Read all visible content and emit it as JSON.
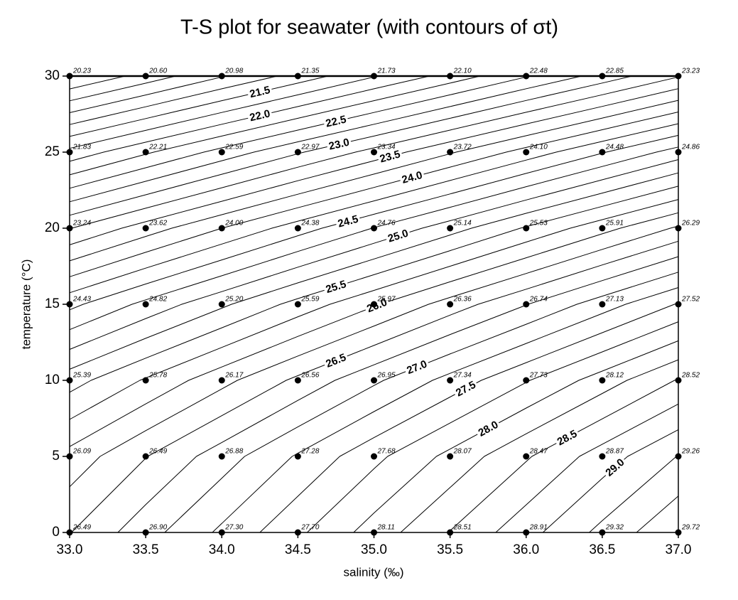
{
  "chart_data": {
    "type": "contour",
    "title": "T-S plot for seawater (with contours of σt)",
    "x_label": "salinity (‰)",
    "y_label": "temperature (°C)",
    "x": [
      33.0,
      33.5,
      34.0,
      34.5,
      35.0,
      35.5,
      36.0,
      36.5,
      37.0
    ],
    "y": [
      0,
      5,
      10,
      15,
      20,
      25,
      30
    ],
    "z": [
      [
        26.49,
        26.9,
        27.3,
        27.7,
        28.11,
        28.51,
        28.91,
        29.32,
        29.72
      ],
      [
        26.09,
        26.49,
        26.88,
        27.28,
        27.68,
        28.07,
        28.47,
        28.87,
        29.26
      ],
      [
        25.39,
        25.78,
        26.17,
        26.56,
        26.95,
        27.34,
        27.73,
        28.12,
        28.52
      ],
      [
        24.43,
        24.82,
        25.2,
        25.59,
        25.97,
        26.36,
        26.74,
        27.13,
        27.52
      ],
      [
        23.24,
        23.62,
        24.0,
        24.38,
        24.76,
        25.14,
        25.53,
        25.91,
        26.29
      ],
      [
        21.83,
        22.21,
        22.59,
        22.97,
        23.34,
        23.72,
        24.1,
        24.48,
        24.86
      ],
      [
        20.23,
        20.6,
        20.98,
        21.35,
        21.73,
        22.1,
        22.48,
        22.85,
        23.23
      ]
    ],
    "value_labels": [
      [
        "26.49",
        "26.90",
        "27.30",
        "27.70",
        "28.11",
        "28.51",
        "28.91",
        "29.32",
        "29.72"
      ],
      [
        "26.09",
        "26.49",
        "26.88",
        "27.28",
        "27.68",
        "28.07",
        "28.47",
        "28.87",
        "29.26"
      ],
      [
        "25.39",
        "25.78",
        "26.17",
        "26.56",
        "26.95",
        "27.34",
        "27.73",
        "28.12",
        "28.52"
      ],
      [
        "24.43",
        "24.82",
        "25.20",
        "25.59",
        "25.97",
        "26.36",
        "26.74",
        "27.13",
        "27.52"
      ],
      [
        "23.24",
        "23.62",
        "24.00",
        "24.38",
        "24.76",
        "25.14",
        "25.53",
        "25.91",
        "26.29"
      ],
      [
        "21.83",
        "22.21",
        "22.59",
        "22.97",
        "23.34",
        "23.72",
        "24.10",
        "24.48",
        "24.86"
      ],
      [
        "20.23",
        "20.60",
        "20.98",
        "21.35",
        "21.73",
        "22.10",
        "22.48",
        "22.85",
        "23.23"
      ]
    ],
    "contour_levels": [
      20.5,
      20.75,
      21.0,
      21.25,
      21.5,
      21.75,
      22.0,
      22.25,
      22.5,
      22.75,
      23.0,
      23.25,
      23.5,
      23.75,
      24.0,
      24.25,
      24.5,
      24.75,
      25.0,
      25.25,
      25.5,
      25.75,
      26.0,
      26.25,
      26.5,
      26.75,
      27.0,
      27.25,
      27.5,
      27.75,
      28.0,
      28.25,
      28.5,
      28.75,
      29.0,
      29.25,
      29.5
    ],
    "contour_labels": [
      {
        "value": 21.5,
        "label": "21.5"
      },
      {
        "value": 22.0,
        "label": "22.0"
      },
      {
        "value": 22.5,
        "label": "22.5"
      },
      {
        "value": 23.0,
        "label": "23.0"
      },
      {
        "value": 23.5,
        "label": "23.5"
      },
      {
        "value": 24.0,
        "label": "24.0"
      },
      {
        "value": 24.5,
        "label": "24.5"
      },
      {
        "value": 25.0,
        "label": "25.0"
      },
      {
        "value": 25.5,
        "label": "25.5"
      },
      {
        "value": 26.0,
        "label": "26.0"
      },
      {
        "value": 26.5,
        "label": "26.5"
      },
      {
        "value": 27.0,
        "label": "27.0"
      },
      {
        "value": 27.5,
        "label": "27.5"
      },
      {
        "value": 28.0,
        "label": "28.0"
      },
      {
        "value": 28.5,
        "label": "28.5"
      },
      {
        "value": 29.0,
        "label": "29.0"
      }
    ],
    "xlim": [
      33.0,
      37.0
    ],
    "ylim": [
      0,
      30
    ],
    "xticks": [
      {
        "value": 33.0,
        "label": "33.0"
      },
      {
        "value": 33.5,
        "label": "33.5"
      },
      {
        "value": 34.0,
        "label": "34.0"
      },
      {
        "value": 34.5,
        "label": "34.5"
      },
      {
        "value": 35.0,
        "label": "35.0"
      },
      {
        "value": 35.5,
        "label": "35.5"
      },
      {
        "value": 36.0,
        "label": "36.0"
      },
      {
        "value": 36.5,
        "label": "36.5"
      },
      {
        "value": 37.0,
        "label": "37.0"
      }
    ],
    "yticks": [
      0,
      5,
      10,
      15,
      20,
      25,
      30
    ],
    "point_color": "#000000",
    "line_color": "#000000"
  }
}
